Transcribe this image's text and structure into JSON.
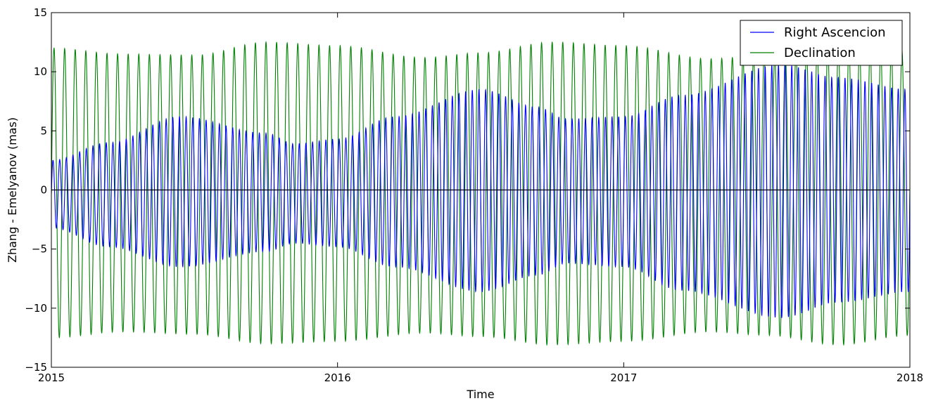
{
  "chart_data": {
    "type": "line",
    "title": "",
    "xlabel": "Time",
    "ylabel": "Zhang - Emelyanov (mas)",
    "xlim": [
      2015,
      2018
    ],
    "ylim": [
      -15,
      15
    ],
    "x_ticks": [
      2015,
      2016,
      2017,
      2018
    ],
    "x_tick_labels": [
      "2015",
      "2016",
      "2017",
      "2018"
    ],
    "y_ticks": [
      15,
      10,
      5,
      0,
      -5,
      -10,
      -15
    ],
    "y_tick_labels": [
      "15",
      "10",
      "5",
      "0",
      "−5",
      "−10",
      "−15"
    ],
    "reference_line_y": 0,
    "grid": false,
    "legend_position": "top-right",
    "series": [
      {
        "name": "Right Ascencion",
        "color": "#0000ff",
        "oscillations_per_year": 43,
        "envelope": {
          "x": [
            2015.0,
            2015.2,
            2015.45,
            2015.75,
            2015.85,
            2016.0,
            2016.2,
            2016.5,
            2016.7,
            2016.8,
            2017.0,
            2017.2,
            2017.55,
            2017.75,
            2018.0
          ],
          "upper": [
            2.5,
            4.0,
            6.2,
            4.8,
            3.9,
            4.3,
            6.2,
            8.5,
            7.0,
            6.0,
            6.2,
            8.0,
            10.6,
            9.5,
            8.5
          ],
          "lower": [
            -3.2,
            -4.8,
            -6.5,
            -5.2,
            -4.5,
            -4.8,
            -6.5,
            -8.6,
            -7.2,
            -6.2,
            -6.5,
            -8.5,
            -10.8,
            -9.5,
            -8.6
          ]
        }
      },
      {
        "name": "Declination",
        "color": "#008000",
        "oscillations_per_year": 27,
        "envelope": {
          "x": [
            2015.0,
            2015.25,
            2015.5,
            2015.75,
            2016.0,
            2016.3,
            2016.5,
            2016.75,
            2017.0,
            2017.3,
            2017.5,
            2017.75,
            2018.0
          ],
          "upper": [
            12.0,
            11.5,
            11.4,
            12.5,
            12.2,
            11.2,
            11.6,
            12.5,
            12.2,
            11.1,
            11.4,
            12.4,
            11.8
          ],
          "lower": [
            -12.5,
            -12.0,
            -12.2,
            -13.0,
            -12.8,
            -12.1,
            -12.4,
            -13.1,
            -12.8,
            -12.0,
            -12.3,
            -13.1,
            -12.3
          ]
        }
      }
    ]
  }
}
